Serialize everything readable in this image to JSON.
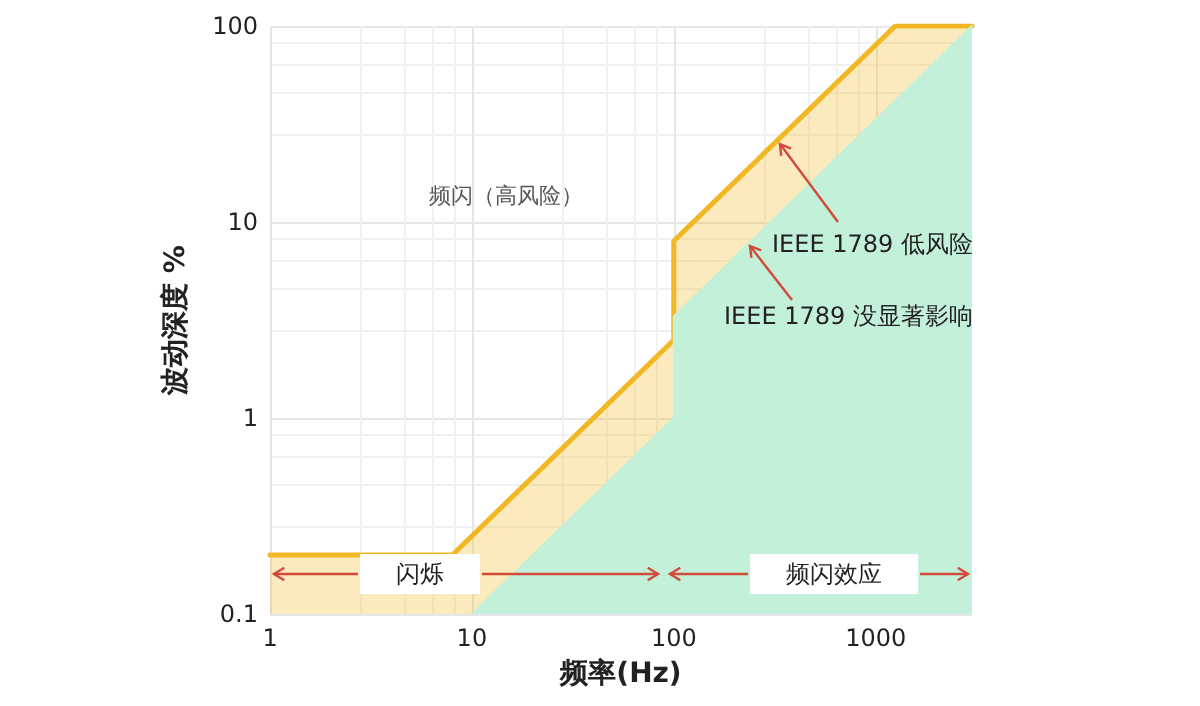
{
  "chart_data": {
    "type": "area",
    "xlabel": "频率(Hz)",
    "ylabel": "波动深度 %",
    "series": [
      {
        "color": "#f2b824",
        "x": [
          1,
          8,
          100,
          100,
          1250,
          3000
        ],
        "values": [
          0.2,
          0.2,
          2.5,
          8,
          100,
          100
        ]
      },
      {
        "color": "#c3f0d8",
        "x": [
          10,
          100,
          100,
          3000
        ],
        "values": [
          0.1,
          1,
          3.3,
          100
        ]
      }
    ],
    "log": "xy",
    "xlim": [
      1,
      3000
    ],
    "ylim": [
      0.1,
      100
    ],
    "xticks": [
      1,
      10,
      100,
      1000
    ],
    "yticks": [
      0.1,
      1,
      10,
      100
    ],
    "grid": true,
    "annotations": [
      "频闪（高风险）",
      "IEEE 1789 低风险",
      "IEEE 1789 没显著影响",
      "闪烁",
      "频闪效应"
    ]
  }
}
